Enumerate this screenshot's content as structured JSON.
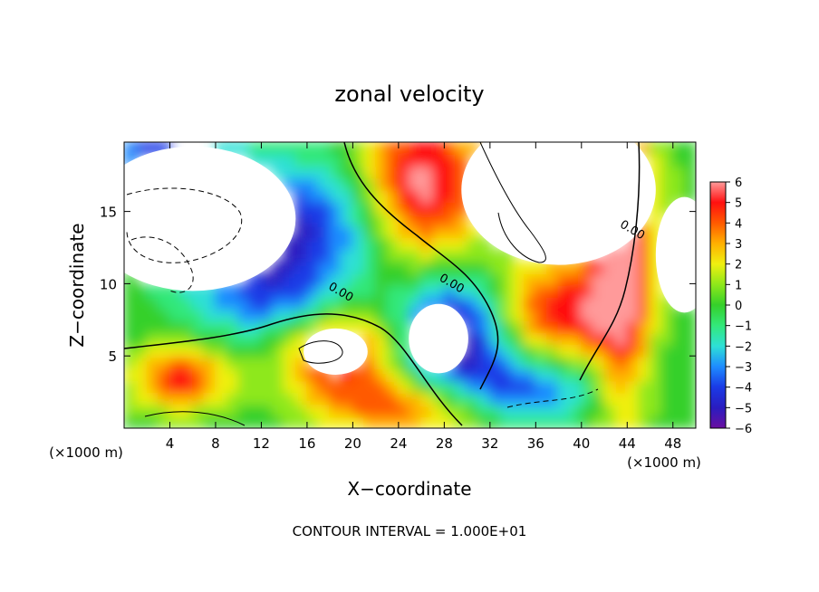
{
  "chart_data": {
    "type": "heatmap",
    "title": "zonal velocity",
    "xlabel": "X−coordinate",
    "ylabel": "Z−coordinate",
    "x_unit_label": "(×1000 m)",
    "y_unit_label": "(×1000 m)",
    "xlim": [
      0,
      50
    ],
    "ylim": [
      0,
      19.8
    ],
    "x_ticks": [
      4,
      8,
      12,
      16,
      20,
      24,
      28,
      32,
      36,
      40,
      44,
      48
    ],
    "y_ticks": [
      5,
      10,
      15
    ],
    "colorbar": {
      "min": -6,
      "max": 6,
      "ticks": [
        "6",
        "5",
        "4",
        "3",
        "2",
        "1",
        "0",
        "−1",
        "−2",
        "−3",
        "−4",
        "−5",
        "−6"
      ],
      "colors": [
        {
          "value": -6,
          "color": "#6a0fa0"
        },
        {
          "value": -5,
          "color": "#2a1cc0"
        },
        {
          "value": -4,
          "color": "#1a3ae6"
        },
        {
          "value": -3,
          "color": "#1e8cff"
        },
        {
          "value": -2,
          "color": "#2ee0d6"
        },
        {
          "value": -1,
          "color": "#33e87a"
        },
        {
          "value": 0,
          "color": "#35d02a"
        },
        {
          "value": 1,
          "color": "#8ee81a"
        },
        {
          "value": 2,
          "color": "#f0f010"
        },
        {
          "value": 3,
          "color": "#ffb000"
        },
        {
          "value": 4,
          "color": "#ff5a00"
        },
        {
          "value": 5,
          "color": "#ff1010"
        },
        {
          "value": 6,
          "color": "#ff9a9a"
        }
      ]
    },
    "contour_labels": [
      {
        "text": "0.00",
        "x": 18.8,
        "z": 9.2
      },
      {
        "text": "0.00",
        "x": 28.5,
        "z": 9.8
      },
      {
        "text": "0.00",
        "x": 44.3,
        "z": 13.5
      }
    ],
    "footer": "CONTOUR INTERVAL = 1.000E+01"
  }
}
